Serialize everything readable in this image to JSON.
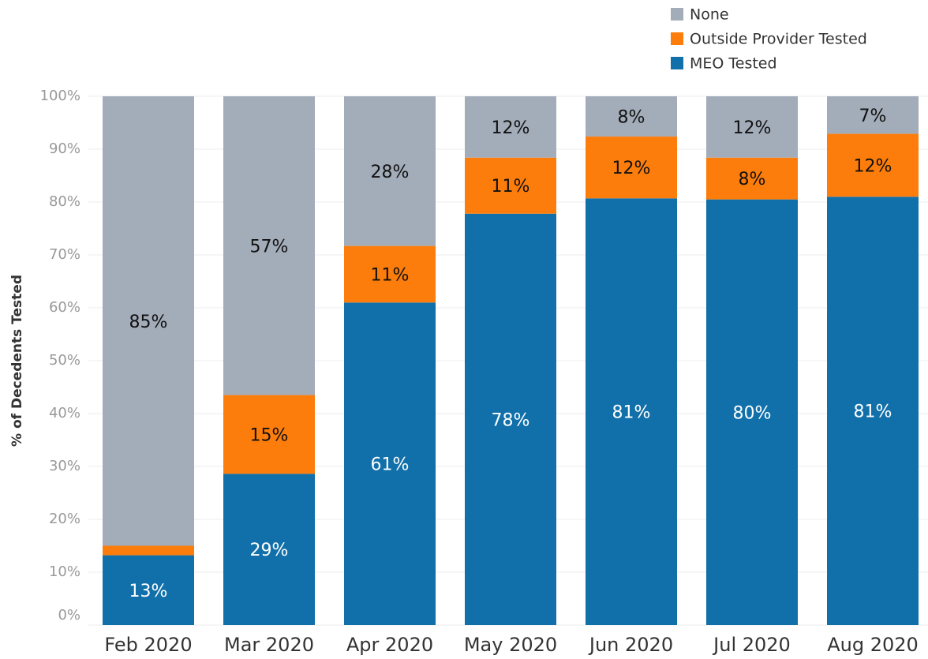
{
  "chart_data": {
    "type": "stacked_bar",
    "y_label": "% of Decedents Tested",
    "categories": [
      "Feb 2020",
      "Mar 2020",
      "Apr 2020",
      "May 2020",
      "Jun 2020",
      "Jul 2020",
      "Aug 2020"
    ],
    "series": [
      {
        "name": "MEO Tested",
        "color": "#1170aa",
        "values": [
          13.2,
          28.6,
          61.0,
          77.8,
          80.7,
          80.5,
          81.0
        ],
        "value_labels": [
          "13%",
          "29%",
          "61%",
          "78%",
          "81%",
          "80%",
          "81%"
        ]
      },
      {
        "name": "Outside Provider Tested",
        "color": "#fc7d0b",
        "values": [
          1.8,
          14.9,
          10.7,
          10.6,
          11.7,
          7.9,
          11.9
        ],
        "value_labels": [
          null,
          "15%",
          "11%",
          "11%",
          "12%",
          "8%",
          "12%"
        ]
      },
      {
        "name": "None",
        "color": "#a3acb9",
        "values": [
          85.0,
          56.5,
          28.3,
          11.6,
          7.6,
          11.6,
          7.1
        ],
        "value_labels": [
          "85%",
          "57%",
          "28%",
          "12%",
          "8%",
          "12%",
          "7%"
        ]
      }
    ],
    "ylim": [
      0,
      100
    ],
    "yticks": [
      {
        "value": 0,
        "label": "0%"
      },
      {
        "value": 10,
        "label": "10%"
      },
      {
        "value": 20,
        "label": "20%"
      },
      {
        "value": 30,
        "label": "30%"
      },
      {
        "value": 40,
        "label": "40%"
      },
      {
        "value": 50,
        "label": "50%"
      },
      {
        "value": 60,
        "label": "60%"
      },
      {
        "value": 70,
        "label": "70%"
      },
      {
        "value": 80,
        "label": "80%"
      },
      {
        "value": 90,
        "label": "90%"
      },
      {
        "value": 100,
        "label": "100%"
      }
    ],
    "grid": true,
    "legend": "top-right"
  }
}
